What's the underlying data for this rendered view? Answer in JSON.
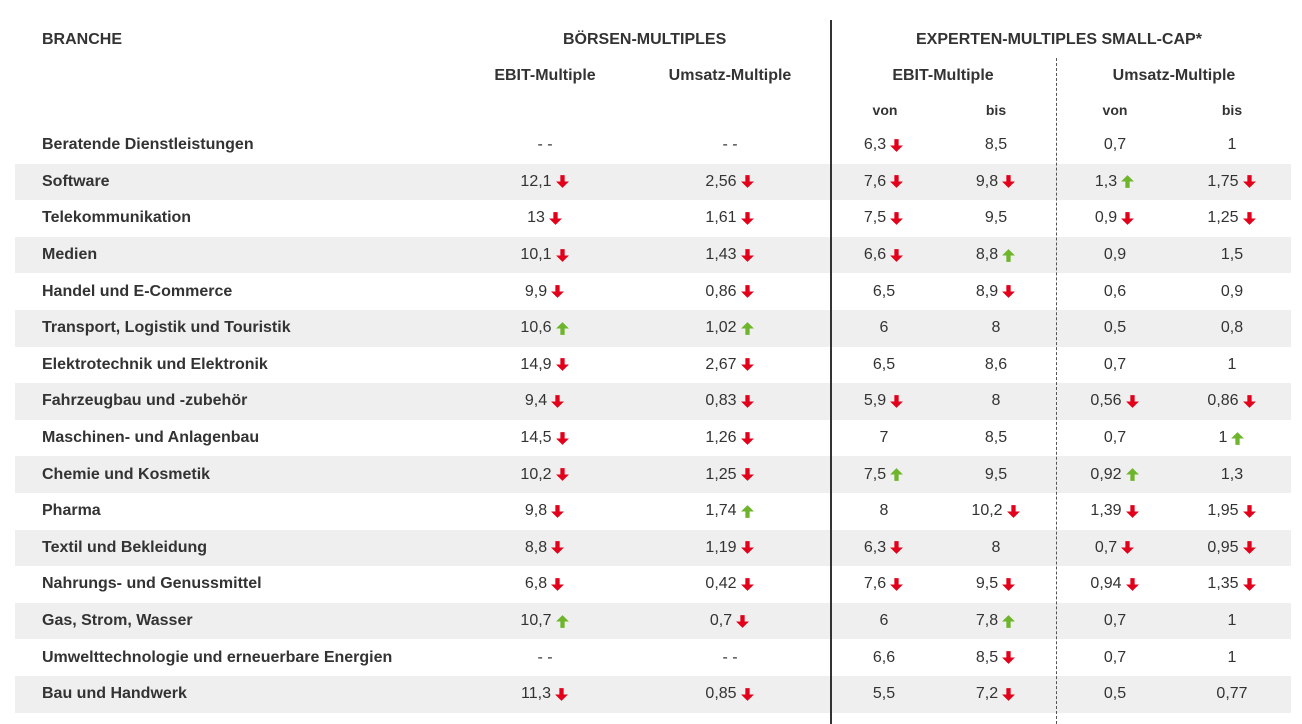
{
  "colors": {
    "down": "#e2001a",
    "up": "#6eb52b",
    "shade": "#efefef",
    "text": "#333333"
  },
  "header": {
    "branche": "BRANCHE",
    "boersen": "BÖRSEN-MULTIPLES",
    "experten": "EXPERTEN-MULTIPLES SMALL-CAP*",
    "ebit1": "EBIT-Multiple",
    "umsatz1": "Umsatz-Multiple",
    "ebit2": "EBIT-Multiple",
    "umsatz2": "Umsatz-Multiple",
    "von1": "von",
    "bis1": "bis",
    "von2": "von",
    "bis2": "bis"
  },
  "rows": [
    {
      "name": "Beratende Dienstleistungen",
      "cells": [
        {
          "v": "- -",
          "t": ""
        },
        {
          "v": "- -",
          "t": ""
        },
        {
          "v": "6,3",
          "t": "down"
        },
        {
          "v": "8,5",
          "t": ""
        },
        {
          "v": "0,7",
          "t": ""
        },
        {
          "v": "1",
          "t": ""
        }
      ]
    },
    {
      "name": "Software",
      "cells": [
        {
          "v": "12,1",
          "t": "down"
        },
        {
          "v": "2,56",
          "t": "down"
        },
        {
          "v": "7,6",
          "t": "down"
        },
        {
          "v": "9,8",
          "t": "down"
        },
        {
          "v": "1,3",
          "t": "up"
        },
        {
          "v": "1,75",
          "t": "down"
        }
      ]
    },
    {
      "name": "Telekommunikation",
      "cells": [
        {
          "v": "13",
          "t": "down"
        },
        {
          "v": "1,61",
          "t": "down"
        },
        {
          "v": "7,5",
          "t": "down"
        },
        {
          "v": "9,5",
          "t": ""
        },
        {
          "v": "0,9",
          "t": "down"
        },
        {
          "v": "1,25",
          "t": "down"
        }
      ]
    },
    {
      "name": "Medien",
      "cells": [
        {
          "v": "10,1",
          "t": "down"
        },
        {
          "v": "1,43",
          "t": "down"
        },
        {
          "v": "6,6",
          "t": "down"
        },
        {
          "v": "8,8",
          "t": "up"
        },
        {
          "v": "0,9",
          "t": ""
        },
        {
          "v": "1,5",
          "t": ""
        }
      ]
    },
    {
      "name": "Handel und E-Commerce",
      "cells": [
        {
          "v": "9,9",
          "t": "down"
        },
        {
          "v": "0,86",
          "t": "down"
        },
        {
          "v": "6,5",
          "t": ""
        },
        {
          "v": "8,9",
          "t": "down"
        },
        {
          "v": "0,6",
          "t": ""
        },
        {
          "v": "0,9",
          "t": ""
        }
      ]
    },
    {
      "name": "Transport, Logistik und Touristik",
      "cells": [
        {
          "v": "10,6",
          "t": "up"
        },
        {
          "v": "1,02",
          "t": "up"
        },
        {
          "v": "6",
          "t": ""
        },
        {
          "v": "8",
          "t": ""
        },
        {
          "v": "0,5",
          "t": ""
        },
        {
          "v": "0,8",
          "t": ""
        }
      ]
    },
    {
      "name": "Elektrotechnik und Elektronik",
      "cells": [
        {
          "v": "14,9",
          "t": "down"
        },
        {
          "v": "2,67",
          "t": "down"
        },
        {
          "v": "6,5",
          "t": ""
        },
        {
          "v": "8,6",
          "t": ""
        },
        {
          "v": "0,7",
          "t": ""
        },
        {
          "v": "1",
          "t": ""
        }
      ]
    },
    {
      "name": "Fahrzeugbau und -zubehör",
      "cells": [
        {
          "v": "9,4",
          "t": "down"
        },
        {
          "v": "0,83",
          "t": "down"
        },
        {
          "v": "5,9",
          "t": "down"
        },
        {
          "v": "8",
          "t": ""
        },
        {
          "v": "0,56",
          "t": "down"
        },
        {
          "v": "0,86",
          "t": "down"
        }
      ]
    },
    {
      "name": "Maschinen- und Anlagenbau",
      "cells": [
        {
          "v": "14,5",
          "t": "down"
        },
        {
          "v": "1,26",
          "t": "down"
        },
        {
          "v": "7",
          "t": ""
        },
        {
          "v": "8,5",
          "t": ""
        },
        {
          "v": "0,7",
          "t": ""
        },
        {
          "v": "1",
          "t": "up"
        }
      ]
    },
    {
      "name": "Chemie und Kosmetik",
      "cells": [
        {
          "v": "10,2",
          "t": "down"
        },
        {
          "v": "1,25",
          "t": "down"
        },
        {
          "v": "7,5",
          "t": "up"
        },
        {
          "v": "9,5",
          "t": ""
        },
        {
          "v": "0,92",
          "t": "up"
        },
        {
          "v": "1,3",
          "t": ""
        }
      ]
    },
    {
      "name": "Pharma",
      "cells": [
        {
          "v": "9,8",
          "t": "down"
        },
        {
          "v": "1,74",
          "t": "up"
        },
        {
          "v": "8",
          "t": ""
        },
        {
          "v": "10,2",
          "t": "down"
        },
        {
          "v": "1,39",
          "t": "down"
        },
        {
          "v": "1,95",
          "t": "down"
        }
      ]
    },
    {
      "name": "Textil und Bekleidung",
      "cells": [
        {
          "v": "8,8",
          "t": "down"
        },
        {
          "v": "1,19",
          "t": "down"
        },
        {
          "v": "6,3",
          "t": "down"
        },
        {
          "v": "8",
          "t": ""
        },
        {
          "v": "0,7",
          "t": "down"
        },
        {
          "v": "0,95",
          "t": "down"
        }
      ]
    },
    {
      "name": "Nahrungs- und Genussmittel",
      "cells": [
        {
          "v": "6,8",
          "t": "down"
        },
        {
          "v": "0,42",
          "t": "down"
        },
        {
          "v": "7,6",
          "t": "down"
        },
        {
          "v": "9,5",
          "t": "down"
        },
        {
          "v": "0,94",
          "t": "down"
        },
        {
          "v": "1,35",
          "t": "down"
        }
      ]
    },
    {
      "name": "Gas, Strom, Wasser",
      "cells": [
        {
          "v": "10,7",
          "t": "up"
        },
        {
          "v": "0,7",
          "t": "down"
        },
        {
          "v": "6",
          "t": ""
        },
        {
          "v": "7,8",
          "t": "up"
        },
        {
          "v": "0,7",
          "t": ""
        },
        {
          "v": "1",
          "t": ""
        }
      ]
    },
    {
      "name": "Umwelttechnologie und erneuerbare Energien",
      "cells": [
        {
          "v": "- -",
          "t": ""
        },
        {
          "v": "- -",
          "t": ""
        },
        {
          "v": "6,6",
          "t": ""
        },
        {
          "v": "8,5",
          "t": "down"
        },
        {
          "v": "0,7",
          "t": ""
        },
        {
          "v": "1",
          "t": ""
        }
      ]
    },
    {
      "name": "Bau und Handwerk",
      "cells": [
        {
          "v": "11,3",
          "t": "down"
        },
        {
          "v": "0,85",
          "t": "down"
        },
        {
          "v": "5,5",
          "t": ""
        },
        {
          "v": "7,2",
          "t": "down"
        },
        {
          "v": "0,5",
          "t": ""
        },
        {
          "v": "0,77",
          "t": ""
        }
      ]
    }
  ]
}
